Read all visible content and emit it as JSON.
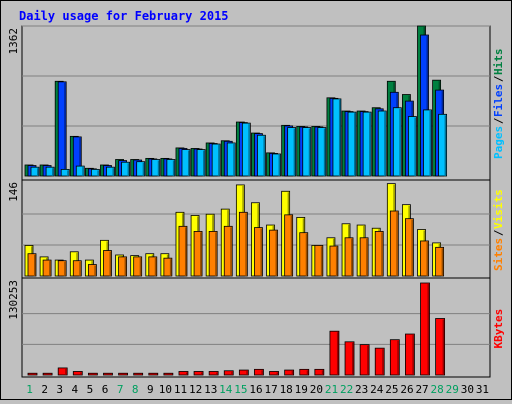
{
  "chart_data": {
    "type": "bar",
    "title": "Daily usage for February 2015",
    "days": [
      "1",
      "2",
      "3",
      "4",
      "5",
      "6",
      "7",
      "8",
      "9",
      "10",
      "11",
      "12",
      "13",
      "14",
      "15",
      "16",
      "17",
      "18",
      "19",
      "20",
      "21",
      "22",
      "23",
      "24",
      "25",
      "26",
      "27",
      "28",
      "29",
      "30",
      "31"
    ],
    "weekend_days": [
      "1",
      "7",
      "8",
      "14",
      "15",
      "21",
      "22",
      "28",
      "29"
    ],
    "panels": [
      {
        "id": "hits-files-pages",
        "axis_max_label": "1362",
        "ylim": [
          0,
          1362
        ],
        "legend": [
          "Pages",
          "Files",
          "Hits"
        ],
        "series": [
          {
            "name": "Hits",
            "color": "#008040",
            "values": [
              100,
              100,
              860,
              360,
              70,
              100,
              150,
              150,
              160,
              160,
              255,
              250,
              300,
              320,
              490,
              390,
              210,
              460,
              450,
              450,
              710,
              590,
              590,
              620,
              860,
              740,
              1362,
              870
            ]
          },
          {
            "name": "Files",
            "color": "#0040ff",
            "values": [
              95,
              95,
              855,
              355,
              65,
              95,
              140,
              145,
              155,
              155,
              250,
              245,
              295,
              315,
              485,
              385,
              205,
              455,
              445,
              445,
              705,
              585,
              585,
              610,
              760,
              680,
              1280,
              780
            ]
          },
          {
            "name": "Pages",
            "color": "#00c0ff",
            "values": [
              80,
              80,
              60,
              90,
              60,
              80,
              125,
              130,
              150,
              150,
              240,
              240,
              290,
              300,
              480,
              370,
              200,
              440,
              440,
              440,
              700,
              580,
              580,
              590,
              620,
              540,
              600,
              560
            ]
          }
        ]
      },
      {
        "id": "visits-sites",
        "axis_max_label": "146",
        "ylim": [
          0,
          146
        ],
        "legend": [
          "Sites",
          "Visits"
        ],
        "series": [
          {
            "name": "Visits",
            "color": "#ffff00",
            "values": [
              48,
              30,
              25,
              38,
              25,
              56,
              33,
              32,
              35,
              35,
              100,
              95,
              97,
              105,
              143,
              115,
              80,
              133,
              92,
              48,
              60,
              82,
              80,
              75,
              145,
              112,
              73,
              52
            ]
          },
          {
            "name": "Sites",
            "color": "#ff8000",
            "values": [
              35,
              25,
              24,
              24,
              18,
              40,
              30,
              30,
              30,
              28,
              78,
              70,
              70,
              78,
              100,
              76,
              72,
              96,
              68,
              48,
              47,
              60,
              60,
              70,
              102,
              90,
              55,
              45
            ]
          }
        ]
      },
      {
        "id": "kbytes",
        "axis_max_label": "130253",
        "ylim": [
          0,
          130253
        ],
        "legend": [
          "KBytes"
        ],
        "series": [
          {
            "name": "KBytes",
            "color": "#ff0000",
            "values": [
              2500,
              2500,
              10000,
              5000,
              2500,
              2500,
              2500,
              2500,
              2500,
              2500,
              5000,
              5000,
              5000,
              6000,
              7000,
              8000,
              5000,
              7000,
              8000,
              8000,
              62000,
              47000,
              43000,
              38000,
              50000,
              58000,
              130253,
              80000
            ]
          }
        ]
      }
    ]
  }
}
